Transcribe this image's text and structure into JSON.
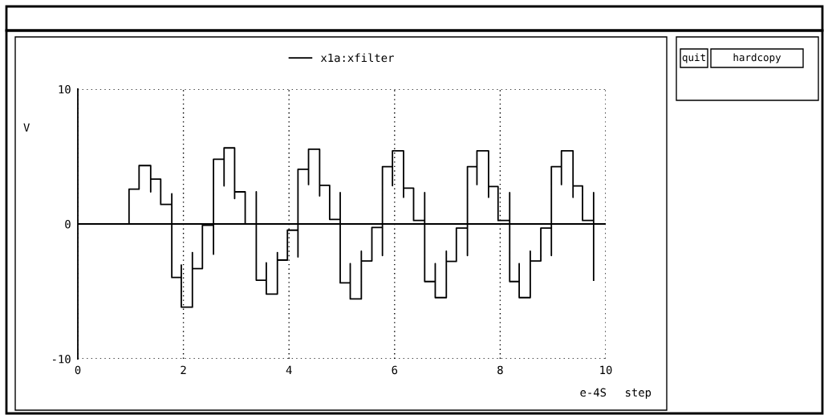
{
  "chart_data": {
    "type": "line",
    "xlabel": "step",
    "ylabel": "V",
    "annotations": [
      "e-4S",
      "quit",
      "hardcopy"
    ],
    "xlim": [
      0,
      10
    ],
    "ylim": [
      -10,
      10
    ],
    "xticks": [
      0,
      2,
      4,
      6,
      8,
      10
    ],
    "yticks": [
      -10,
      0,
      10
    ],
    "grid": true,
    "legend": "top",
    "line_style": "solid",
    "marker": "none",
    "ref_lines": [
      {
        "axis": "y",
        "value": 0,
        "color": "#000000"
      }
    ],
    "series": [
      {
        "name": "x1a:xfilter",
        "color": "#000000",
        "x": [
          0.97,
          0.97,
          1.16,
          1.16,
          1.38,
          1.38,
          1.38,
          1.57,
          1.57,
          1.78,
          1.78,
          1.78,
          1.96,
          1.96,
          1.96,
          2.17,
          2.17,
          2.17,
          2.36,
          2.36,
          2.57,
          2.57,
          2.57,
          2.77,
          2.77,
          2.77,
          2.97,
          2.97,
          2.97,
          3.17,
          3.17,
          3.38,
          3.38,
          3.38,
          3.57,
          3.57,
          3.57,
          3.78,
          3.78,
          3.78,
          3.97,
          3.97,
          4.17,
          4.17,
          4.17,
          4.37,
          4.37,
          4.37,
          4.58,
          4.58,
          4.58,
          4.77,
          4.77,
          4.97,
          4.97,
          4.97,
          5.16,
          5.16,
          5.16,
          5.37,
          5.37,
          5.37,
          5.57,
          5.57,
          5.77,
          5.77,
          5.77,
          5.96,
          5.96,
          5.96,
          6.17,
          6.17,
          6.17,
          6.36,
          6.36,
          6.57,
          6.57,
          6.57,
          6.77,
          6.77,
          6.77,
          6.98,
          6.98,
          6.98,
          7.17,
          7.17,
          7.38,
          7.38,
          7.38,
          7.56,
          7.56,
          7.56,
          7.78,
          7.78,
          7.78,
          7.96,
          7.96,
          8.18,
          8.18,
          8.18,
          8.36,
          8.36,
          8.36,
          8.57,
          8.57,
          8.57,
          8.77,
          8.77,
          8.97,
          8.97,
          8.97,
          9.16,
          9.16,
          9.16,
          9.38,
          9.38,
          9.38,
          9.56,
          9.56,
          9.77,
          9.77,
          9.77
        ],
        "values": [
          0,
          2.58,
          2.58,
          4.33,
          4.33,
          2.38,
          3.33,
          3.33,
          1.45,
          1.45,
          2.24,
          -3.97,
          -3.97,
          -3.04,
          -6.17,
          -6.17,
          -2.12,
          -3.31,
          -3.31,
          -0.1,
          -0.1,
          -2.24,
          4.8,
          4.8,
          2.82,
          5.64,
          5.64,
          1.89,
          2.38,
          2.38,
          0,
          0,
          2.38,
          -4.17,
          -4.17,
          -2.88,
          -5.2,
          -5.2,
          -2.12,
          -2.68,
          -2.68,
          -0.46,
          -0.46,
          -2.44,
          4.05,
          4.05,
          2.92,
          5.54,
          5.54,
          2.08,
          2.86,
          2.86,
          0.34,
          0.34,
          2.32,
          -4.37,
          -4.37,
          -2.94,
          -5.56,
          -5.56,
          -2.02,
          -2.74,
          -2.74,
          -0.26,
          -0.26,
          -2.34,
          4.25,
          4.25,
          2.84,
          5.42,
          5.42,
          1.98,
          2.66,
          2.66,
          0.26,
          0.26,
          2.32,
          -4.27,
          -4.27,
          -2.94,
          -5.46,
          -5.46,
          -2.02,
          -2.78,
          -2.78,
          -0.3,
          -0.3,
          -2.34,
          4.25,
          4.25,
          2.92,
          5.42,
          5.42,
          1.98,
          2.78,
          2.78,
          0.26,
          0.26,
          2.32,
          -4.27,
          -4.27,
          -2.94,
          -5.46,
          -5.46,
          -2.02,
          -2.74,
          -2.74,
          -0.3,
          -0.3,
          -2.34,
          4.25,
          4.25,
          2.92,
          5.42,
          5.42,
          1.98,
          2.82,
          2.82,
          0.26,
          0.26,
          2.32,
          -4.17
        ]
      }
    ]
  }
}
